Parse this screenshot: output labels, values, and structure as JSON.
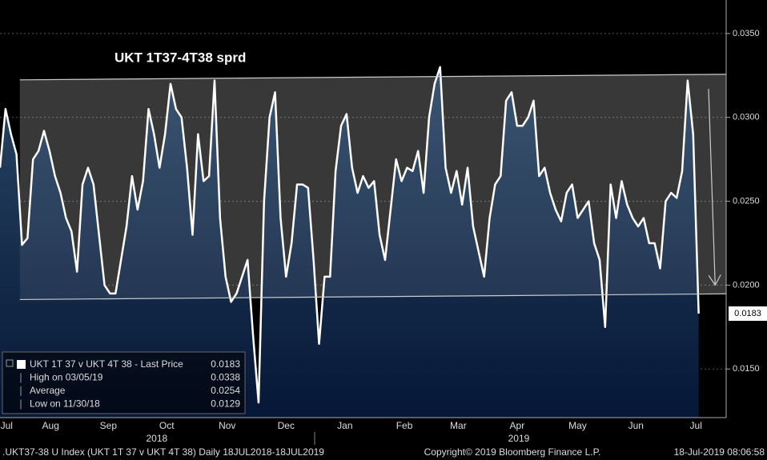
{
  "chart_data": {
    "type": "area",
    "title": "UKT 1T37-4T38 sprd",
    "values": [
      0.027,
      0.0305,
      0.029,
      0.0278,
      0.0224,
      0.0228,
      0.0275,
      0.028,
      0.0292,
      0.028,
      0.0265,
      0.0255,
      0.024,
      0.0232,
      0.0208,
      0.026,
      0.027,
      0.026,
      0.023,
      0.02,
      0.0195,
      0.0195,
      0.0215,
      0.0235,
      0.0265,
      0.0245,
      0.0262,
      0.0305,
      0.029,
      0.027,
      0.029,
      0.032,
      0.0305,
      0.03,
      0.027,
      0.023,
      0.029,
      0.0262,
      0.0265,
      0.0322,
      0.024,
      0.0205,
      0.019,
      0.0195,
      0.0205,
      0.0215,
      0.017,
      0.013,
      0.025,
      0.03,
      0.0315,
      0.024,
      0.0205,
      0.0225,
      0.026,
      0.026,
      0.0258,
      0.0215,
      0.0165,
      0.0205,
      0.0205,
      0.0268,
      0.0295,
      0.0302,
      0.027,
      0.0255,
      0.0265,
      0.0258,
      0.0262,
      0.023,
      0.0215,
      0.0245,
      0.0275,
      0.0262,
      0.027,
      0.0268,
      0.028,
      0.0255,
      0.03,
      0.032,
      0.033,
      0.027,
      0.0255,
      0.0268,
      0.0248,
      0.027,
      0.0235,
      0.022,
      0.0205,
      0.024,
      0.026,
      0.0265,
      0.031,
      0.0315,
      0.0295,
      0.0295,
      0.03,
      0.031,
      0.0265,
      0.027,
      0.0255,
      0.0245,
      0.0238,
      0.0255,
      0.026,
      0.024,
      0.0245,
      0.025,
      0.0225,
      0.0215,
      0.0175,
      0.026,
      0.024,
      0.0262,
      0.0248,
      0.024,
      0.0235,
      0.024,
      0.0225,
      0.0225,
      0.021,
      0.025,
      0.0255,
      0.0252,
      0.0268,
      0.0322,
      0.029,
      0.0183
    ],
    "color": "#ffffff",
    "xlim": [
      0,
      132
    ],
    "xticks": [
      {
        "value": 1.2,
        "label": "Jul"
      },
      {
        "value": 9.2,
        "label": "Aug"
      },
      {
        "value": 19.7,
        "label": "Sep"
      },
      {
        "value": 30.3,
        "label": "Oct"
      },
      {
        "value": 41.3,
        "label": "Nov"
      },
      {
        "value": 52,
        "label": "Dec"
      },
      {
        "value": 62.7,
        "label": "Jan"
      },
      {
        "value": 73.5,
        "label": "Feb"
      },
      {
        "value": 83.3,
        "label": "Mar"
      },
      {
        "value": 94,
        "label": "Apr"
      },
      {
        "value": 105,
        "label": "May"
      },
      {
        "value": 115.6,
        "label": "Jun"
      },
      {
        "value": 126.5,
        "label": "Jul"
      }
    ],
    "years": [
      {
        "value": 28.5,
        "label": "2018"
      },
      {
        "value": 94.3,
        "label": "2019"
      }
    ],
    "ylim": [
      0.0121,
      0.037
    ],
    "yticks": [
      {
        "value": 0.015,
        "label": "0.0150"
      },
      {
        "value": 0.02,
        "label": "0.0200"
      },
      {
        "value": 0.025,
        "label": "0.0250"
      },
      {
        "value": 0.03,
        "label": "0.0300"
      },
      {
        "value": 0.035,
        "label": "0.0350"
      }
    ],
    "grid": true,
    "last_value": 0.0183,
    "channel": {
      "x": [
        3.6,
        132
      ],
      "upper": [
        0.03224,
        0.03257
      ],
      "lower": [
        0.01914,
        0.01948
      ]
    },
    "arrow": {
      "x": [
        128.8,
        130
      ],
      "values": [
        0.0317,
        0.02
      ]
    },
    "legend": [
      {
        "label": "UKT 1T 37 v UKT 4T 38 - Last Price",
        "value": 0.0183
      },
      {
        "label": "High on 03/05/19",
        "value": 0.0338
      },
      {
        "label": "Average",
        "value": 0.0254
      },
      {
        "label": "Low on 11/30/18",
        "value": 0.0129
      }
    ],
    "footer": {
      "left": ".UKT37-38 U Index (UKT 1T 37 v UKT 4T 38)  Daily 18JUL2018-18JUL2019",
      "center": "Copyright© 2019 Bloomberg Finance L.P.",
      "right": "18-Jul-2019 08:06:58"
    }
  }
}
